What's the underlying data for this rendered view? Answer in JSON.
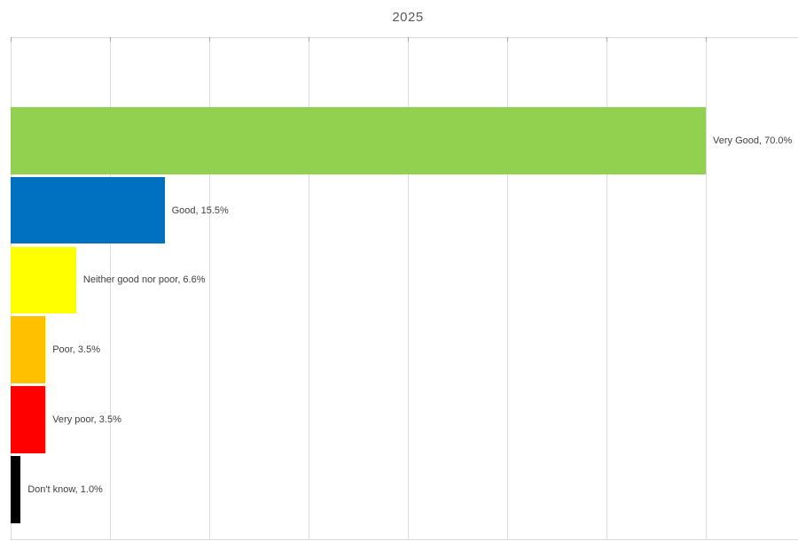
{
  "chart_data": {
    "type": "bar",
    "orientation": "horizontal",
    "title": "2025",
    "categories": [
      "Very Good",
      "Good",
      "Neither good nor poor",
      "Poor",
      "Very poor",
      "Don't know"
    ],
    "values": [
      70.0,
      15.5,
      6.6,
      3.5,
      3.5,
      1.0
    ],
    "data_labels": [
      "Very Good, 70.0%",
      "Good, 15.5%",
      "Neither good nor poor, 6.6%",
      "Poor, 3.5%",
      "Very poor, 3.5%",
      "Don't know, 1.0%"
    ],
    "bar_colors": [
      "#92D050",
      "#0070C0",
      "#FFFF00",
      "#FFC000",
      "#FF0000",
      "#000000"
    ],
    "value_unit": "%",
    "xlim": [
      0,
      80
    ],
    "gridline_step": 10,
    "grid": true,
    "legend": false,
    "axis_tick_labels_visible": false
  },
  "styles": {
    "gridline_color": "#d9d9d9",
    "tick_color": "#a6a6a6",
    "title_color": "#595959",
    "label_color": "#404040",
    "background": "#ffffff"
  }
}
